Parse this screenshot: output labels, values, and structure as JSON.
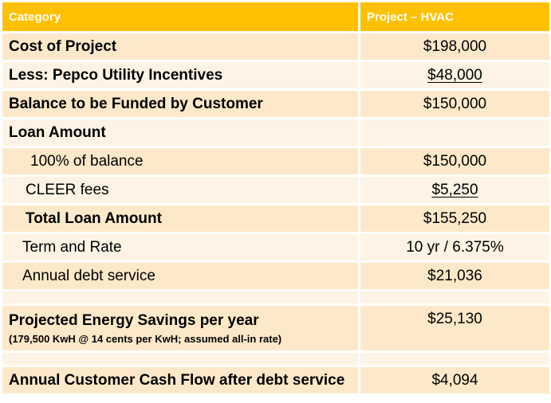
{
  "header": {
    "category": "Category",
    "project": "Project  – HVAC"
  },
  "rows": [
    {
      "label": "Cost of Project",
      "value": "$198,000"
    },
    {
      "label": "Less:  Pepco Utility Incentives",
      "value": "$48,000"
    },
    {
      "label": "Balance to be Funded by Customer",
      "value": "$150,000"
    },
    {
      "label": "Loan Amount",
      "value": ""
    },
    {
      "label": "100% of balance",
      "value": "$150,000"
    },
    {
      "label": "CLEER fees",
      "value": "$5,250"
    },
    {
      "label": "Total Loan Amount",
      "value": "$155,250"
    },
    {
      "label": "Term and Rate",
      "value": "10 yr / 6.375%"
    },
    {
      "label": "Annual debt service",
      "value": "$21,036"
    },
    {
      "label": "",
      "value": ""
    },
    {
      "label": "Projected Energy Savings per year",
      "sublabel": "(179,500 KwH @ 14 cents per KwH; assumed all-in rate)",
      "value": "$25,130"
    },
    {
      "label": "",
      "value": ""
    },
    {
      "label": "Annual Customer Cash Flow after debt service",
      "value": "$4,094"
    }
  ]
}
